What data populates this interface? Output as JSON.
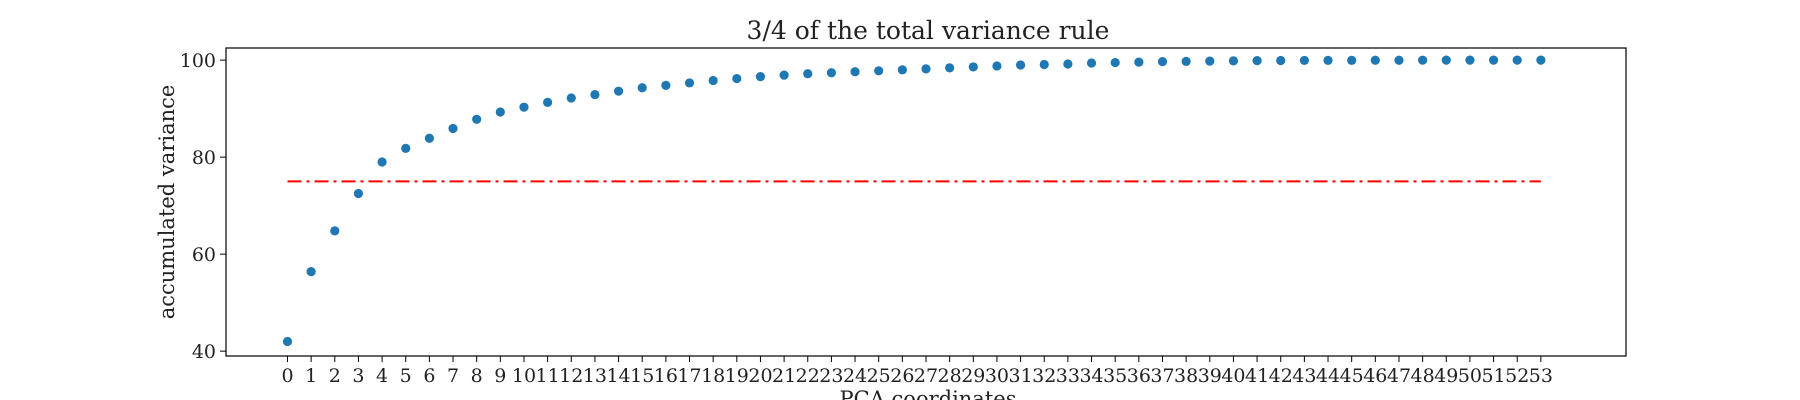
{
  "chart_data": {
    "type": "scatter",
    "title": "3/4 of the total variance rule",
    "xlabel": "PCA coordinates",
    "ylabel": "accumulated variance",
    "x": [
      0,
      1,
      2,
      3,
      4,
      5,
      6,
      7,
      8,
      9,
      10,
      11,
      12,
      13,
      14,
      15,
      16,
      17,
      18,
      19,
      20,
      21,
      22,
      23,
      24,
      25,
      26,
      27,
      28,
      29,
      30,
      31,
      32,
      33,
      34,
      35,
      36,
      37,
      38,
      39,
      40,
      41,
      42,
      43,
      44,
      45,
      46,
      47,
      48,
      49,
      50,
      51,
      52,
      53
    ],
    "y": [
      42.0,
      56.4,
      64.8,
      72.5,
      79.0,
      81.8,
      83.9,
      85.9,
      87.8,
      89.3,
      90.3,
      91.3,
      92.2,
      92.9,
      93.6,
      94.3,
      94.8,
      95.3,
      95.8,
      96.2,
      96.6,
      96.9,
      97.2,
      97.4,
      97.6,
      97.8,
      98.0,
      98.2,
      98.4,
      98.6,
      98.8,
      99.0,
      99.1,
      99.2,
      99.4,
      99.5,
      99.6,
      99.7,
      99.75,
      99.8,
      99.85,
      99.9,
      99.92,
      99.94,
      99.95,
      99.96,
      99.97,
      99.98,
      99.99,
      100.0,
      100.0,
      100.0,
      100.0,
      100.0
    ],
    "threshold": {
      "value": 75,
      "color": "#ff0000",
      "style": "dash-dot"
    },
    "point_color": "#1f77b4",
    "xlim": [
      -2.6,
      56.6
    ],
    "ylim": [
      39.0,
      102.5
    ],
    "xticks": [
      "0",
      "1",
      "2",
      "3",
      "4",
      "5",
      "6",
      "7",
      "8",
      "9",
      "10",
      "11",
      "12",
      "13",
      "14",
      "15",
      "16",
      "17",
      "18",
      "19",
      "20",
      "21",
      "22",
      "23",
      "24",
      "25",
      "26",
      "27",
      "28",
      "29",
      "30",
      "31",
      "32",
      "33",
      "34",
      "35",
      "36",
      "37",
      "38",
      "39",
      "40",
      "41",
      "42",
      "43",
      "44",
      "45",
      "46",
      "47",
      "48",
      "49",
      "50",
      "51",
      "52",
      "53"
    ],
    "yticks": [
      40,
      60,
      80,
      100
    ],
    "grid": false,
    "legend": "none"
  }
}
